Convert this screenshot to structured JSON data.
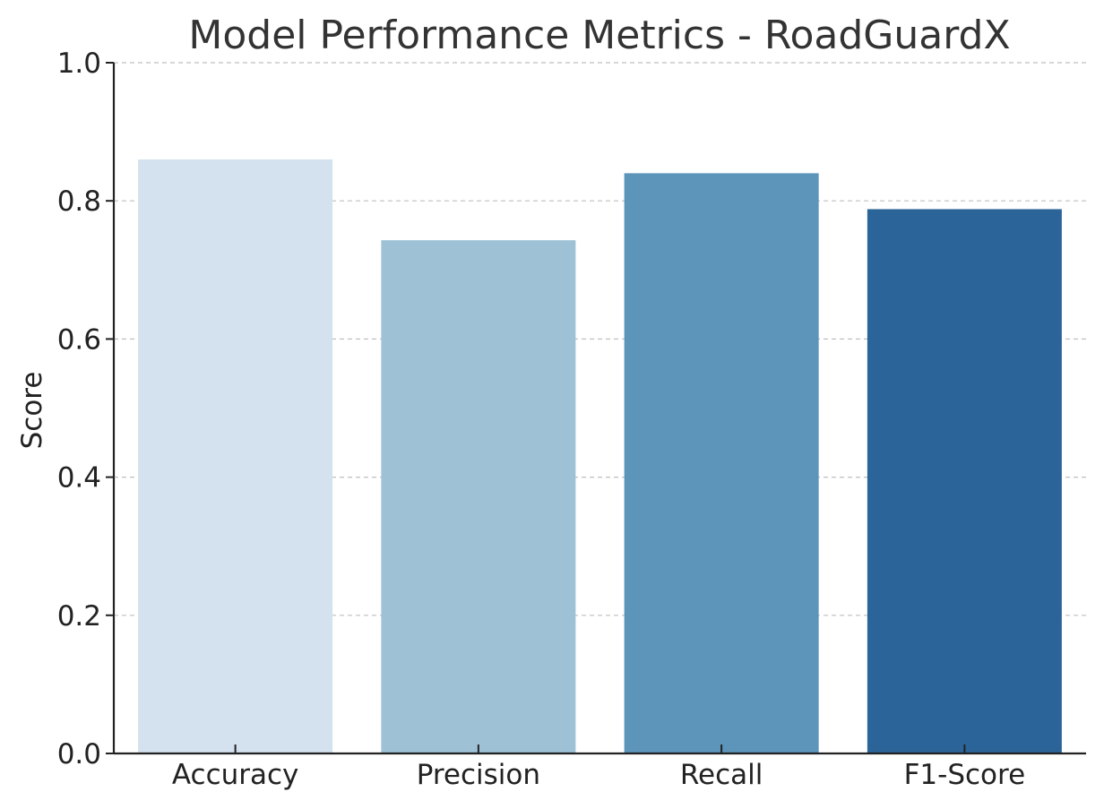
{
  "chart_data": {
    "type": "bar",
    "title": "Model Performance Metrics - RoadGuardX",
    "xlabel": "",
    "ylabel": "Score",
    "categories": [
      "Accuracy",
      "Precision",
      "Recall",
      "F1-Score"
    ],
    "values": [
      0.86,
      0.743,
      0.84,
      0.788
    ],
    "colors": [
      "#d4e1ee",
      "#9ec1d6",
      "#5c94ba",
      "#2b6498"
    ],
    "ylim": [
      0,
      1.0
    ],
    "yticks": [
      "0.0",
      "0.2",
      "0.4",
      "0.6",
      "0.8",
      "1.0"
    ],
    "grid": "horizontal dashed",
    "legend": "none"
  }
}
